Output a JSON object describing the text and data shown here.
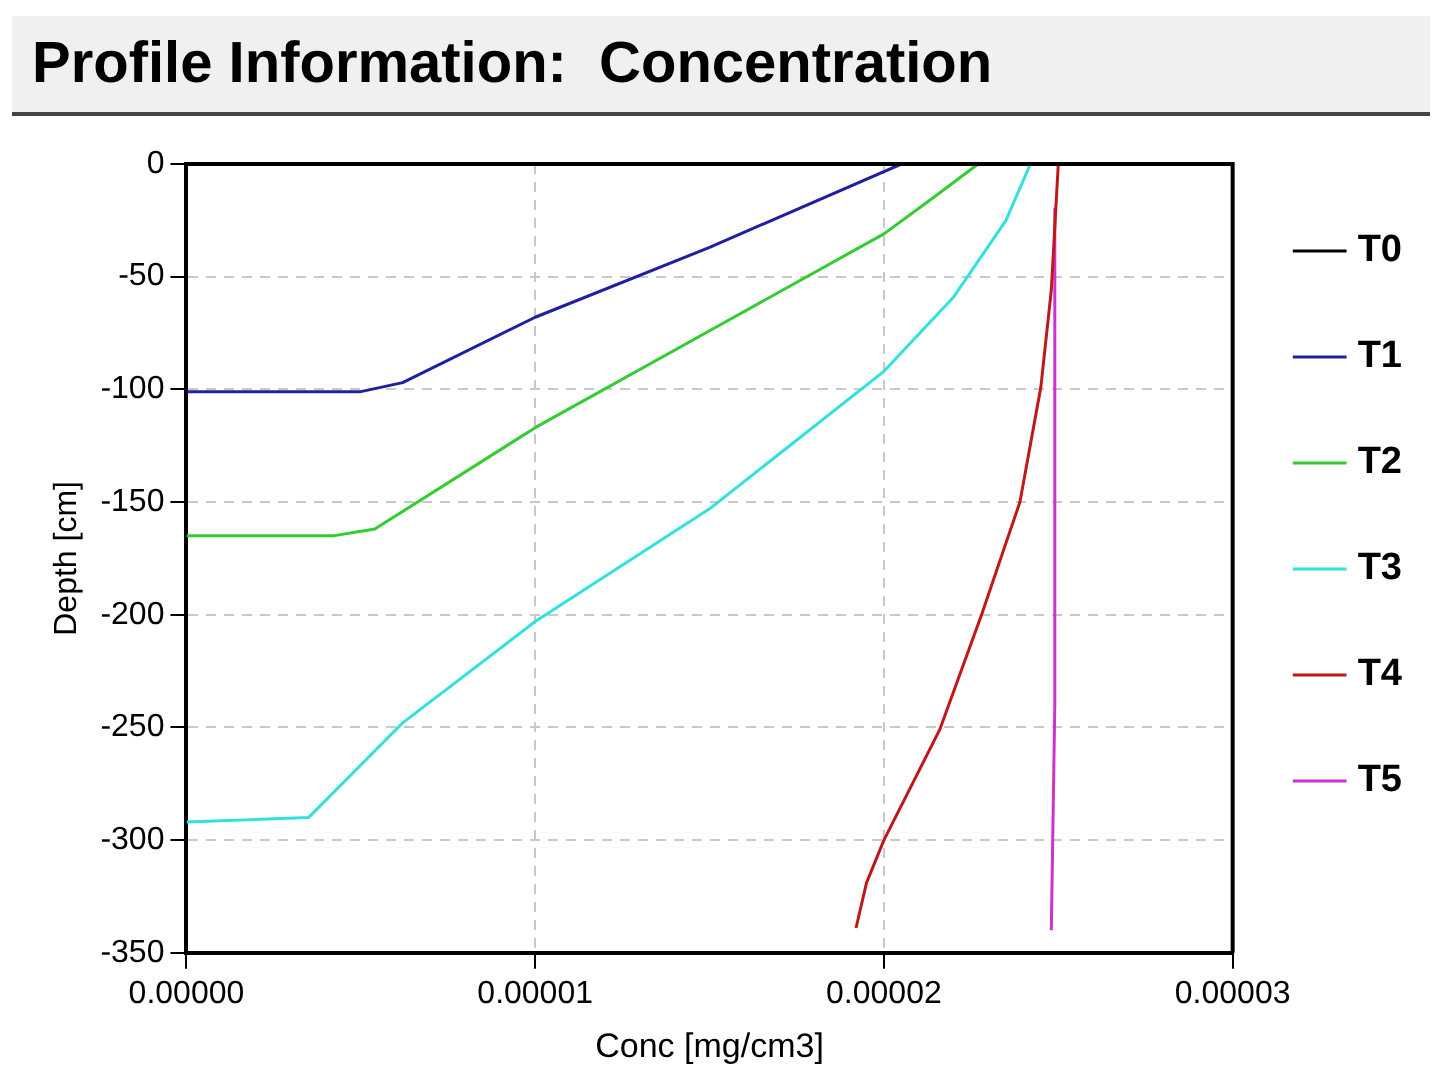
{
  "chart_data": {
    "type": "line",
    "title": "Profile Information:  Concentration",
    "xlabel": "Conc [mg/cm3]",
    "ylabel": "Depth [cm]",
    "xlim": [
      0,
      3e-05
    ],
    "xticks": [
      {
        "value": 0,
        "label": "0.00000"
      },
      {
        "value": 1e-05,
        "label": "0.00001"
      },
      {
        "value": 2e-05,
        "label": "0.00002"
      },
      {
        "value": 3e-05,
        "label": "0.00003"
      }
    ],
    "ylim": [
      -350,
      0
    ],
    "yticks": [
      -350,
      -300,
      -250,
      -200,
      -150,
      -100,
      -50,
      0
    ],
    "grid": true,
    "legend": "right",
    "marker": "none",
    "line_style": "solid",
    "series": [
      {
        "name": "T0",
        "color": "#000000"
      },
      {
        "name": "T1",
        "color": "#1f1f9f",
        "x": [
          0,
          5e-06,
          6.2e-06,
          1e-05,
          1.5e-05,
          2.05e-05
        ],
        "values": [
          -101,
          -101,
          -97,
          -68,
          -37,
          0
        ]
      },
      {
        "name": "T2",
        "color": "#33cc33",
        "x": [
          0,
          4.2e-06,
          5.4e-06,
          1e-05,
          1.5e-05,
          2e-05,
          2.15e-05,
          2.27e-05
        ],
        "values": [
          -165,
          -165,
          -162,
          -117,
          -74,
          -31,
          -14,
          0
        ]
      },
      {
        "name": "T3",
        "color": "#33e0e0",
        "x": [
          0,
          3.5e-06,
          6.2e-06,
          1e-05,
          1.5e-05,
          2e-05,
          2.2e-05,
          2.35e-05,
          2.42e-05
        ],
        "values": [
          -292,
          -290,
          -248,
          -203,
          -153,
          -92,
          -59,
          -25,
          0
        ]
      },
      {
        "name": "T4",
        "color": "#c01818",
        "x": [
          2.5e-05,
          2.48e-05,
          2.45e-05,
          2.39e-05,
          2.28e-05,
          2.16e-05,
          2e-05,
          1.95e-05,
          1.92e-05
        ],
        "values": [
          0,
          -56,
          -99,
          -150,
          -200,
          -251,
          -300,
          -319,
          -339
        ]
      },
      {
        "name": "T5",
        "color": "#cc33cc",
        "x": [
          2.49e-05,
          2.49e-05,
          2.48e-05
        ],
        "values": [
          -20,
          -240,
          -340
        ]
      }
    ]
  }
}
